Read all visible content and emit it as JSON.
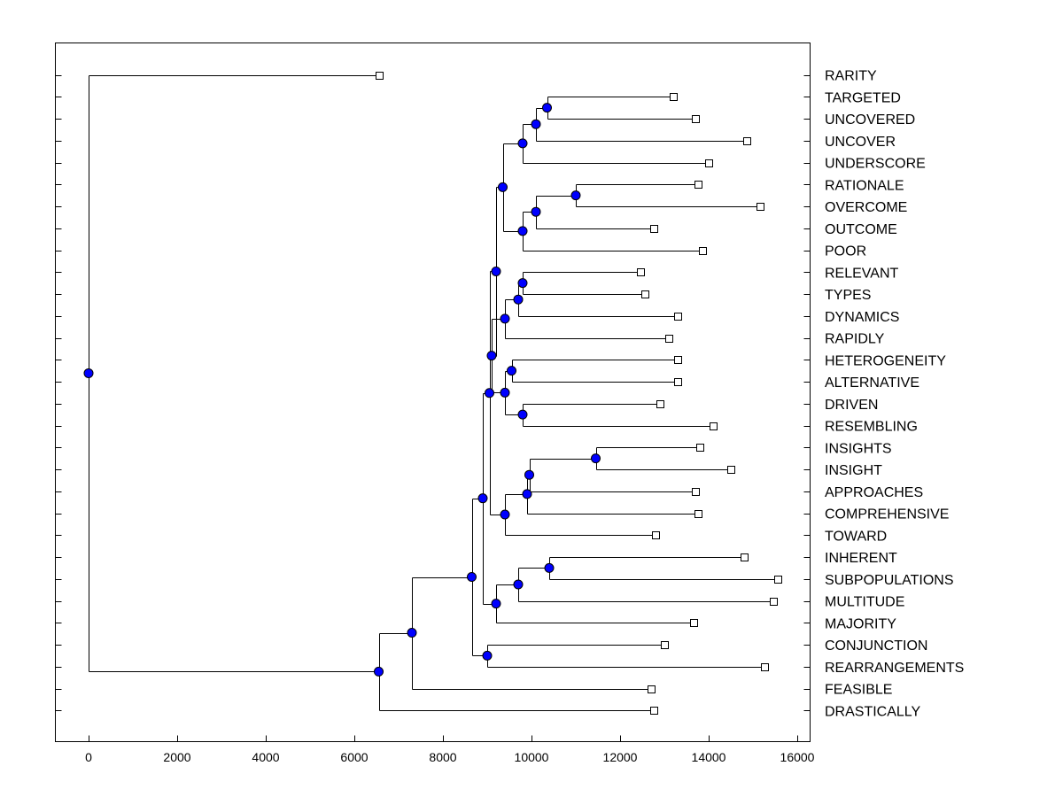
{
  "chart_data": {
    "type": "dendrogram",
    "title": "",
    "xlabel": "",
    "ylabel": "",
    "xlim": [
      -750,
      16250
    ],
    "xticks": [
      0,
      2000,
      4000,
      6000,
      8000,
      10000,
      12000,
      14000,
      16000
    ],
    "xtick_labels": [
      "0",
      "2000",
      "4000",
      "6000",
      "8000",
      "10000",
      "12000",
      "14000",
      "16000"
    ],
    "node_color": "#0000ff",
    "leaves": [
      {
        "label": "RARITY",
        "value": 6550
      },
      {
        "label": "TARGETED",
        "value": 13200
      },
      {
        "label": "UNCOVERED",
        "value": 13700
      },
      {
        "label": "UNCOVER",
        "value": 14850
      },
      {
        "label": "UNDERSCORE",
        "value": 14000
      },
      {
        "label": "RATIONALE",
        "value": 13750
      },
      {
        "label": "OVERCOME",
        "value": 15150
      },
      {
        "label": "OUTCOME",
        "value": 12750
      },
      {
        "label": "POOR",
        "value": 13850
      },
      {
        "label": "RELEVANT",
        "value": 12450
      },
      {
        "label": "TYPES",
        "value": 12550
      },
      {
        "label": "DYNAMICS",
        "value": 13300
      },
      {
        "label": "RAPIDLY",
        "value": 13100
      },
      {
        "label": "HETEROGENEITY",
        "value": 13300
      },
      {
        "label": "ALTERNATIVE",
        "value": 13300
      },
      {
        "label": "DRIVEN",
        "value": 12900
      },
      {
        "label": "RESEMBLING",
        "value": 14100
      },
      {
        "label": "INSIGHTS",
        "value": 13800
      },
      {
        "label": "INSIGHT",
        "value": 14500
      },
      {
        "label": "APPROACHES",
        "value": 13700
      },
      {
        "label": "COMPREHENSIVE",
        "value": 13750
      },
      {
        "label": "TOWARD",
        "value": 12800
      },
      {
        "label": "INHERENT",
        "value": 14800
      },
      {
        "label": "SUBPOPULATIONS",
        "value": 15550
      },
      {
        "label": "MULTITUDE",
        "value": 15450
      },
      {
        "label": "MAJORITY",
        "value": 13650
      },
      {
        "label": "CONJUNCTION",
        "value": 13000
      },
      {
        "label": "REARRANGEMENTS",
        "value": 15250
      },
      {
        "label": "FEASIBLE",
        "value": 12700
      },
      {
        "label": "DRASTICALLY",
        "value": 12750
      }
    ],
    "merges": [
      {
        "id": "n01",
        "value": 10350,
        "children": [
          "L1",
          "L2"
        ]
      },
      {
        "id": "n02",
        "value": 10100,
        "children": [
          "n01",
          "L3"
        ]
      },
      {
        "id": "n03",
        "value": 9800,
        "children": [
          "n02",
          "L4"
        ]
      },
      {
        "id": "n04",
        "value": 11000,
        "children": [
          "L5",
          "L6"
        ]
      },
      {
        "id": "n05",
        "value": 10100,
        "children": [
          "n04",
          "L7"
        ]
      },
      {
        "id": "n06",
        "value": 9800,
        "children": [
          "n05",
          "L8"
        ]
      },
      {
        "id": "n07",
        "value": 9350,
        "children": [
          "n03",
          "n06"
        ]
      },
      {
        "id": "n08",
        "value": 9800,
        "children": [
          "L9",
          "L10"
        ]
      },
      {
        "id": "n09",
        "value": 9700,
        "children": [
          "n08",
          "L11"
        ]
      },
      {
        "id": "n10",
        "value": 9400,
        "children": [
          "n09",
          "L12"
        ]
      },
      {
        "id": "n11",
        "value": 9550,
        "children": [
          "L13",
          "L14"
        ]
      },
      {
        "id": "n12",
        "value": 9800,
        "children": [
          "L15",
          "L16"
        ]
      },
      {
        "id": "n13",
        "value": 9400,
        "children": [
          "n11",
          "n12"
        ]
      },
      {
        "id": "n14",
        "value": 9100,
        "children": [
          "n10",
          "n13"
        ]
      },
      {
        "id": "n15",
        "value": 9200,
        "children": [
          "n07",
          "n14"
        ]
      },
      {
        "id": "n16",
        "value": 11450,
        "children": [
          "L17",
          "L18"
        ]
      },
      {
        "id": "n17",
        "value": 9950,
        "children": [
          "n16",
          "L19"
        ]
      },
      {
        "id": "n18",
        "value": 9900,
        "children": [
          "n17",
          "L20"
        ]
      },
      {
        "id": "n19",
        "value": 9400,
        "children": [
          "n18",
          "L21"
        ]
      },
      {
        "id": "n20",
        "value": 9050,
        "children": [
          "n15",
          "n19"
        ]
      },
      {
        "id": "n21",
        "value": 10400,
        "children": [
          "L22",
          "L23"
        ]
      },
      {
        "id": "n22",
        "value": 9700,
        "children": [
          "n21",
          "L24"
        ]
      },
      {
        "id": "n23",
        "value": 9200,
        "children": [
          "n22",
          "L25"
        ]
      },
      {
        "id": "n24",
        "value": 8900,
        "children": [
          "n20",
          "n23"
        ]
      },
      {
        "id": "n25",
        "value": 9000,
        "children": [
          "L26",
          "L27"
        ]
      },
      {
        "id": "n26",
        "value": 8650,
        "children": [
          "n24",
          "n25"
        ]
      },
      {
        "id": "n27",
        "value": 7300,
        "children": [
          "n26",
          "L28"
        ]
      },
      {
        "id": "n28",
        "value": 6550,
        "children": [
          "n27",
          "L29"
        ]
      },
      {
        "id": "n29",
        "value": 0,
        "children": [
          "L0",
          "n28"
        ]
      }
    ]
  }
}
